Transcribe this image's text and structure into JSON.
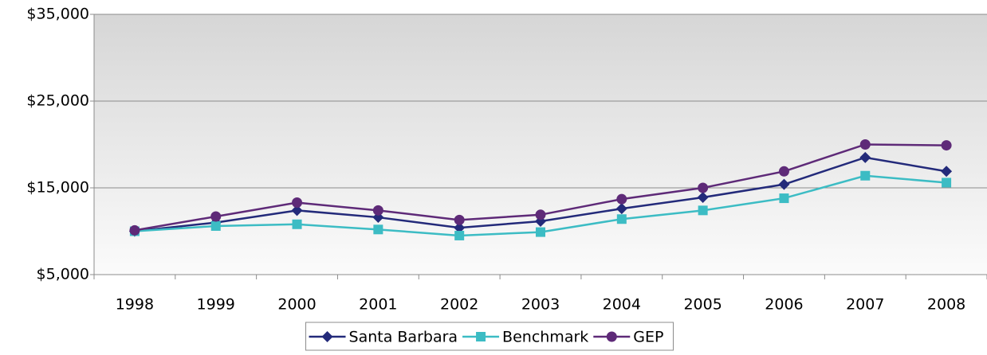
{
  "chart_data": {
    "type": "line",
    "categories": [
      "1998",
      "1999",
      "2000",
      "2001",
      "2002",
      "2003",
      "2004",
      "2005",
      "2006",
      "2007",
      "2008"
    ],
    "series": [
      {
        "name": "Santa Barbara",
        "color": "#232a7a",
        "marker": "diamond",
        "values": [
          10000,
          11000,
          12400,
          11600,
          10400,
          11150,
          12600,
          13900,
          15400,
          18500,
          16900
        ]
      },
      {
        "name": "Benchmark",
        "color": "#3cbcc4",
        "marker": "square",
        "values": [
          10000,
          10600,
          10800,
          10200,
          9500,
          9900,
          11400,
          12400,
          13800,
          16400,
          15600
        ]
      },
      {
        "name": "GEP",
        "color": "#5e2a78",
        "marker": "circle",
        "values": [
          10100,
          11700,
          13300,
          12400,
          11300,
          11900,
          13700,
          15000,
          16900,
          20000,
          19900
        ]
      }
    ],
    "ylim": [
      5000,
      35000
    ],
    "yticks": [
      {
        "value": 5000,
        "label": "$5,000"
      },
      {
        "value": 15000,
        "label": "$15,000"
      },
      {
        "value": 25000,
        "label": "$25,000"
      },
      {
        "value": 35000,
        "label": "$35,000"
      }
    ],
    "grid": true,
    "legend": "bottom"
  }
}
